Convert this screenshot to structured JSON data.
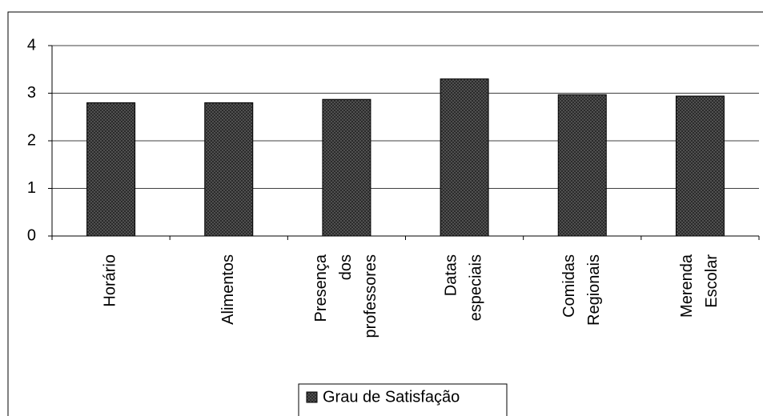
{
  "chart_data": {
    "type": "bar",
    "categories": [
      "Horário",
      "Alimentos",
      "Presença dos professores",
      "Datas especiais",
      "Comidas Regionais",
      "Merenda Escolar"
    ],
    "series": [
      {
        "name": "Grau de Satisfação",
        "color": "#5a5a5a",
        "values": [
          2.8,
          2.8,
          2.87,
          3.3,
          2.97,
          2.94
        ]
      }
    ],
    "ylim": [
      0,
      4
    ],
    "yticks": [
      0,
      1,
      2,
      3,
      4
    ],
    "grid": true,
    "legend": "bottom"
  }
}
